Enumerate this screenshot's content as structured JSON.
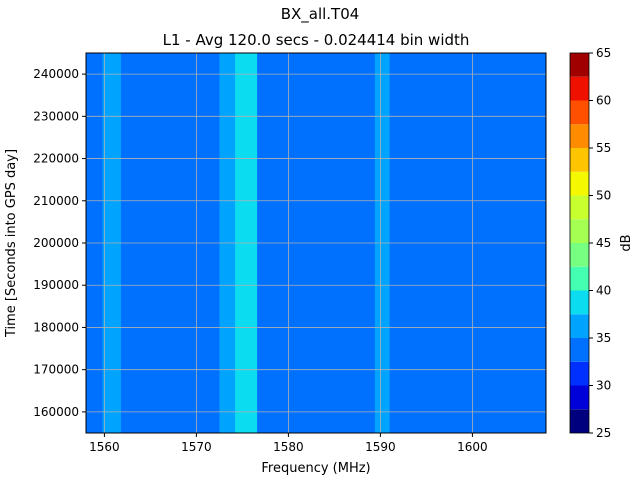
{
  "chart_data": {
    "type": "heatmap",
    "title": "BX_all.T04",
    "subtitle": "L1 - Avg 120.0 secs - 0.024414 bin width",
    "xlabel": "Frequency (MHz)",
    "ylabel": "Time [Seconds into GPS day]",
    "xlim": [
      1558,
      1608
    ],
    "ylim": [
      155000,
      245000
    ],
    "x_ticks": [
      1560,
      1570,
      1580,
      1590,
      1600
    ],
    "y_ticks": [
      160000,
      170000,
      180000,
      190000,
      200000,
      210000,
      220000,
      230000,
      240000
    ],
    "grid": true,
    "colorbar": {
      "label": "dB",
      "levels": [
        25,
        27.5,
        30,
        32.5,
        35,
        37.5,
        40,
        42.5,
        45,
        47.5,
        50,
        52.5,
        55,
        57.5,
        60,
        62.5,
        65
      ],
      "tick_values": [
        25,
        30,
        35,
        40,
        45,
        50,
        55,
        60,
        65
      ],
      "colors": [
        "#00007f",
        "#0000d8",
        "#0030ff",
        "#0070ff",
        "#00a4ff",
        "#0cdcf0",
        "#44ffb2",
        "#76ff80",
        "#a4ff52",
        "#c8ff2e",
        "#f4f800",
        "#ffc400",
        "#ff8c00",
        "#ff5000",
        "#f01000",
        "#a00000"
      ]
    },
    "background_level_db": 33,
    "bands": [
      {
        "x_range": [
          1559.8,
          1561.8
        ],
        "level_db": 35.5
      },
      {
        "x_range": [
          1574.2,
          1576.6
        ],
        "level_db": 38.5
      },
      {
        "x_range": [
          1572.5,
          1574.2
        ],
        "level_db": 35.5
      },
      {
        "x_range": [
          1589.4,
          1591.0
        ],
        "level_db": 36
      }
    ]
  }
}
